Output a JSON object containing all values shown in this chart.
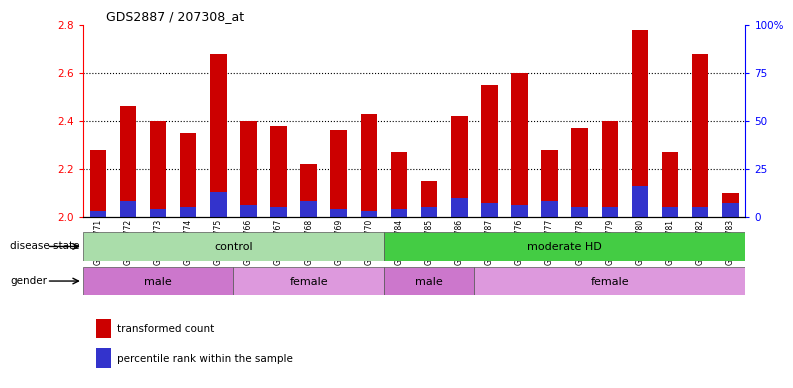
{
  "title": "GDS2887 / 207308_at",
  "samples": [
    "GSM217771",
    "GSM217772",
    "GSM217773",
    "GSM217774",
    "GSM217775",
    "GSM217766",
    "GSM217767",
    "GSM217768",
    "GSM217769",
    "GSM217770",
    "GSM217784",
    "GSM217785",
    "GSM217786",
    "GSM217787",
    "GSM217776",
    "GSM217777",
    "GSM217778",
    "GSM217779",
    "GSM217780",
    "GSM217781",
    "GSM217782",
    "GSM217783"
  ],
  "transformed_count": [
    2.28,
    2.46,
    2.4,
    2.35,
    2.68,
    2.4,
    2.38,
    2.22,
    2.36,
    2.43,
    2.27,
    2.15,
    2.42,
    2.55,
    2.6,
    2.28,
    2.37,
    2.4,
    2.78,
    2.27,
    2.68,
    2.1
  ],
  "percentile_rank": [
    3,
    8,
    4,
    5,
    13,
    6,
    5,
    8,
    4,
    3,
    4,
    5,
    10,
    7,
    6,
    8,
    5,
    5,
    16,
    5,
    5,
    7
  ],
  "ymin": 2.0,
  "ymax": 2.8,
  "yticks_left": [
    2.0,
    2.2,
    2.4,
    2.6,
    2.8
  ],
  "yticks_right": [
    0,
    25,
    50,
    75,
    100
  ],
  "bar_color": "#cc0000",
  "blue_color": "#3333cc",
  "disease_state_groups": [
    {
      "label": "control",
      "start": 0,
      "end": 10,
      "color": "#aaddaa"
    },
    {
      "label": "moderate HD",
      "start": 10,
      "end": 22,
      "color": "#44cc44"
    }
  ],
  "gender_groups": [
    {
      "label": "male",
      "start": 0,
      "end": 5,
      "color": "#cc77cc"
    },
    {
      "label": "female",
      "start": 5,
      "end": 10,
      "color": "#dd99dd"
    },
    {
      "label": "male",
      "start": 10,
      "end": 13,
      "color": "#cc77cc"
    },
    {
      "label": "female",
      "start": 13,
      "end": 22,
      "color": "#dd99dd"
    }
  ],
  "legend_items": [
    {
      "label": "transformed count",
      "color": "#cc0000"
    },
    {
      "label": "percentile rank within the sample",
      "color": "#3333cc"
    }
  ]
}
